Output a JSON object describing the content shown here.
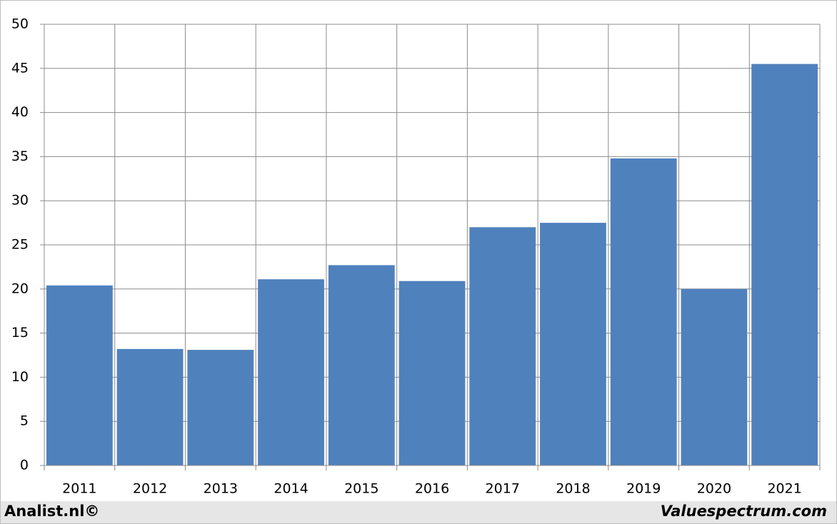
{
  "chart_data": {
    "type": "bar",
    "categories": [
      "2011",
      "2012",
      "2013",
      "2014",
      "2015",
      "2016",
      "2017",
      "2018",
      "2019",
      "2020",
      "2021"
    ],
    "values": [
      20.4,
      13.2,
      13.1,
      21.1,
      22.7,
      20.9,
      27.0,
      27.5,
      34.8,
      20.0,
      45.5
    ],
    "color": "#4f81bd",
    "ylim": [
      0,
      50
    ],
    "yticks": [
      0,
      5,
      10,
      15,
      20,
      25,
      30,
      35,
      40,
      45,
      50
    ],
    "grid": true,
    "credits": [
      "Analist.nl©",
      "Valuespectrum.com"
    ]
  }
}
